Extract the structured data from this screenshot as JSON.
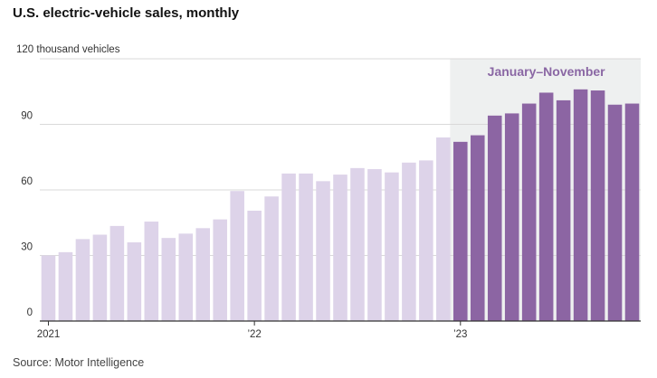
{
  "chart_data": {
    "type": "bar",
    "title": "U.S. electric-vehicle sales, monthly",
    "ylabel": "120 thousand vehicles",
    "ylim": [
      0,
      120
    ],
    "y_ticks": [
      "0",
      "30",
      "60",
      "90"
    ],
    "y_top_label": "120 thousand vehicles",
    "x_tick_labels": [
      "2021",
      "’22",
      "’23"
    ],
    "x_tick_positions": [
      0,
      12,
      24
    ],
    "highlight_label": "January–November",
    "highlight_start_index": 24,
    "categories": [
      "Jan 2021",
      "Feb 2021",
      "Mar 2021",
      "Apr 2021",
      "May 2021",
      "Jun 2021",
      "Jul 2021",
      "Aug 2021",
      "Sep 2021",
      "Oct 2021",
      "Nov 2021",
      "Dec 2021",
      "Jan 2022",
      "Feb 2022",
      "Mar 2022",
      "Apr 2022",
      "May 2022",
      "Jun 2022",
      "Jul 2022",
      "Aug 2022",
      "Sep 2022",
      "Oct 2022",
      "Nov 2022",
      "Dec 2022",
      "Jan 2023",
      "Feb 2023",
      "Mar 2023",
      "Apr 2023",
      "May 2023",
      "Jun 2023",
      "Jul 2023",
      "Aug 2023",
      "Sep 2023",
      "Oct 2023",
      "Nov 2023"
    ],
    "values": [
      30,
      31.5,
      37.5,
      39.5,
      43.5,
      36,
      45.5,
      38,
      40,
      42.5,
      46.5,
      59.5,
      50.5,
      57,
      67.5,
      67.5,
      64,
      67,
      70,
      69.5,
      68,
      72.5,
      73.5,
      84,
      82,
      85,
      94,
      95,
      99.5,
      104.5,
      101,
      106,
      105.5,
      99,
      99.5
    ]
  },
  "colors": {
    "light_bar": "#ddd3e9",
    "dark_bar": "#8c65a3",
    "highlight_bg": "#eef0f0",
    "highlight_text": "#8a67a4",
    "grid": "#d9d9d9",
    "axis": "#333333"
  },
  "source": "Source: Motor Intelligence"
}
